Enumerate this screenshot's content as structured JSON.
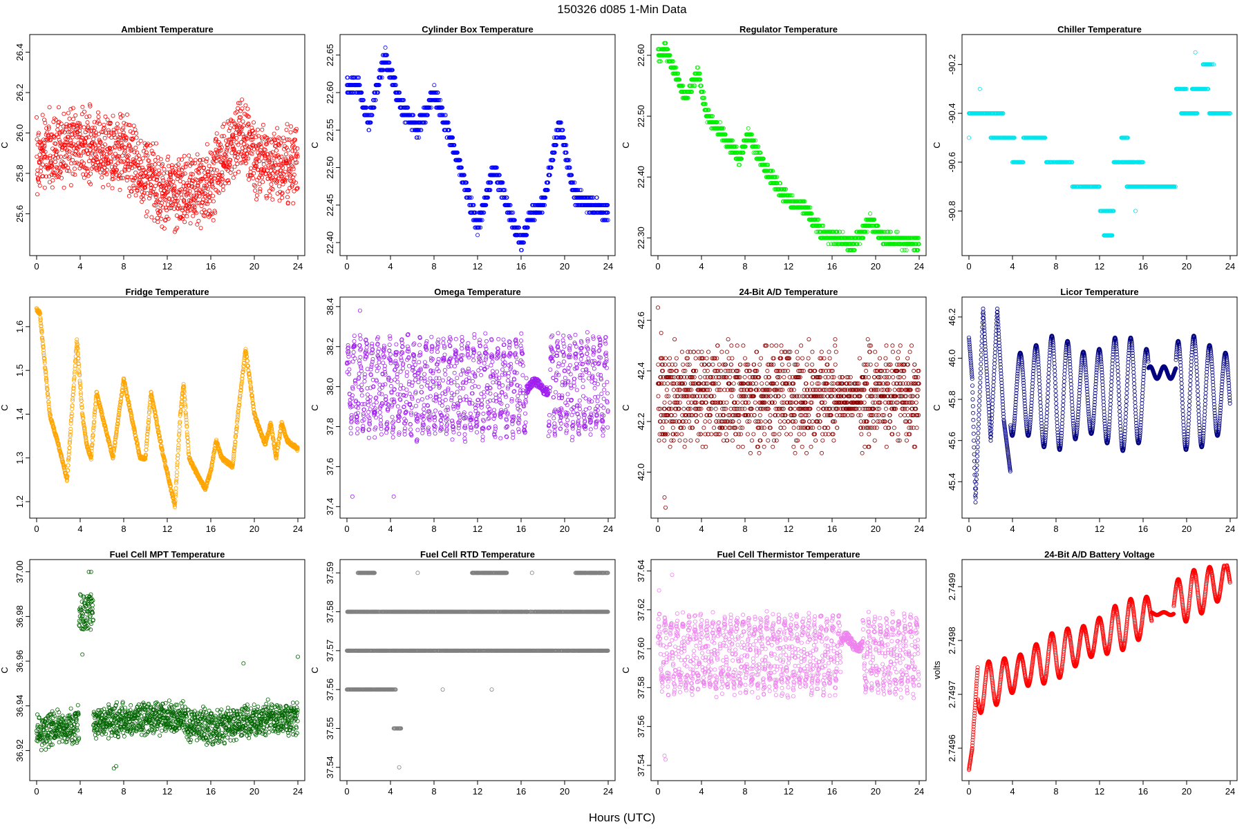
{
  "figure": {
    "title": "150326    d085    1-Min Data",
    "xlabel": "Hours (UTC)"
  },
  "chart_data": [
    {
      "type": "scatter",
      "title": "Ambient Temperature",
      "ylabel": "C",
      "xlabel": "Hours (UTC)",
      "color": "#ff0000",
      "xlim": [
        0,
        24
      ],
      "ylim": [
        25.42,
        26.46
      ],
      "xticks": [
        0,
        4,
        8,
        12,
        16,
        20,
        24
      ],
      "yticks": [
        25.6,
        25.8,
        26.0,
        26.2,
        26.4
      ],
      "ytick_labels": [
        "25.6",
        "25.8",
        "26.0",
        "26.2",
        "26.4"
      ],
      "kind": "noise",
      "base": 25.85,
      "amp": 0.12,
      "spread": 0.22,
      "seed": 11,
      "keypoints": [
        [
          0,
          25.9
        ],
        [
          4,
          25.95
        ],
        [
          8,
          25.9
        ],
        [
          12,
          25.7
        ],
        [
          14,
          25.72
        ],
        [
          16,
          25.75
        ],
        [
          18,
          25.95
        ],
        [
          19,
          26.0
        ],
        [
          20,
          25.85
        ],
        [
          24,
          25.85
        ]
      ]
    },
    {
      "type": "scatter",
      "title": "Cylinder Box Temperature",
      "ylabel": "C",
      "xlabel": "Hours (UTC)",
      "color": "#0000ff",
      "xlim": [
        0,
        24
      ],
      "ylim": [
        22.39,
        22.67
      ],
      "xticks": [
        0,
        4,
        8,
        12,
        16,
        20,
        24
      ],
      "yticks": [
        22.4,
        22.45,
        22.5,
        22.55,
        22.6,
        22.65
      ],
      "ytick_labels": [
        "22.40",
        "22.45",
        "22.50",
        "22.55",
        "22.60",
        "22.65"
      ],
      "kind": "stepped",
      "step": 0.01,
      "seed": 12,
      "keypoints": [
        [
          0,
          22.61
        ],
        [
          1,
          22.61
        ],
        [
          2,
          22.56
        ],
        [
          3.5,
          22.65
        ],
        [
          5,
          22.58
        ],
        [
          6.5,
          22.55
        ],
        [
          8,
          22.6
        ],
        [
          10,
          22.52
        ],
        [
          12,
          22.42
        ],
        [
          13.5,
          22.5
        ],
        [
          16,
          22.4
        ],
        [
          17,
          22.44
        ],
        [
          18,
          22.45
        ],
        [
          19.5,
          22.56
        ],
        [
          21,
          22.46
        ],
        [
          24,
          22.44
        ]
      ]
    },
    {
      "type": "scatter",
      "title": "Regulator Temperature",
      "ylabel": "C",
      "xlabel": "Hours (UTC)",
      "color": "#00ee00",
      "xlim": [
        0,
        24
      ],
      "ylim": [
        22.28,
        22.625
      ],
      "xticks": [
        0,
        4,
        8,
        12,
        16,
        20,
        24
      ],
      "yticks": [
        22.3,
        22.4,
        22.5,
        22.6
      ],
      "ytick_labels": [
        "22.30",
        "22.40",
        "22.50",
        "22.60"
      ],
      "kind": "stepped",
      "step": 0.01,
      "seed": 13,
      "keypoints": [
        [
          0,
          22.6
        ],
        [
          0.7,
          22.61
        ],
        [
          2.5,
          22.53
        ],
        [
          3.7,
          22.57
        ],
        [
          4.5,
          22.5
        ],
        [
          6,
          22.47
        ],
        [
          7.5,
          22.43
        ],
        [
          8.3,
          22.47
        ],
        [
          10,
          22.41
        ],
        [
          12,
          22.36
        ],
        [
          13.5,
          22.35
        ],
        [
          15,
          22.31
        ],
        [
          16,
          22.3
        ],
        [
          18,
          22.29
        ],
        [
          19.5,
          22.33
        ],
        [
          20.5,
          22.3
        ],
        [
          24,
          22.29
        ]
      ]
    },
    {
      "type": "scatter",
      "title": "Chiller Temperature",
      "ylabel": "C",
      "xlabel": "Hours (UTC)",
      "color": "#00e5ee",
      "xlim": [
        0,
        24
      ],
      "ylim": [
        -90.96,
        -90.1
      ],
      "xticks": [
        0,
        4,
        8,
        12,
        16,
        20,
        24
      ],
      "yticks": [
        -90.8,
        -90.6,
        -90.4,
        -90.2
      ],
      "ytick_labels": [
        "-90.8",
        "-90.6",
        "-90.4",
        "-90.2"
      ],
      "kind": "levels",
      "seed": 14,
      "segments": [
        [
          0,
          1.5,
          -90.4
        ],
        [
          1.5,
          3.2,
          -90.4
        ],
        [
          2,
          3.2,
          -90.5
        ],
        [
          3.2,
          4.2,
          -90.5
        ],
        [
          4,
          5,
          -90.6
        ],
        [
          5,
          7,
          -90.5
        ],
        [
          7,
          9.5,
          -90.6
        ],
        [
          9.5,
          12,
          -90.7
        ],
        [
          12,
          13.3,
          -90.8
        ],
        [
          12.4,
          13.2,
          -90.9
        ],
        [
          13.3,
          16,
          -90.6
        ],
        [
          14,
          14.6,
          -90.5
        ],
        [
          14.5,
          19,
          -90.7
        ],
        [
          19,
          20,
          -90.3
        ],
        [
          19.5,
          21,
          -90.4
        ],
        [
          20.5,
          22,
          -90.3
        ],
        [
          22,
          24,
          -90.4
        ],
        [
          21.5,
          22.5,
          -90.2
        ]
      ],
      "extras": [
        [
          0,
          -90.5
        ],
        [
          1,
          -90.3
        ],
        [
          20.8,
          -90.15
        ],
        [
          15.3,
          -90.8
        ],
        [
          3,
          -90.4
        ]
      ]
    },
    {
      "type": "scatter",
      "title": "Fridge Temperature",
      "ylabel": "C",
      "xlabel": "Hours (UTC)",
      "color": "#ffa500",
      "xlim": [
        0,
        24
      ],
      "ylim": [
        1.175,
        1.655
      ],
      "xticks": [
        0,
        4,
        8,
        12,
        16,
        20,
        24
      ],
      "yticks": [
        1.2,
        1.3,
        1.4,
        1.5,
        1.6
      ],
      "ytick_labels": [
        "1.2",
        "1.3",
        "1.4",
        "1.5",
        "1.6"
      ],
      "kind": "curve",
      "jitter": 0.004,
      "seed": 15,
      "keypoints": [
        [
          0,
          1.64
        ],
        [
          0.3,
          1.63
        ],
        [
          1.2,
          1.4
        ],
        [
          2,
          1.33
        ],
        [
          2.5,
          1.28
        ],
        [
          2.8,
          1.25
        ],
        [
          3.7,
          1.57
        ],
        [
          4.2,
          1.4
        ],
        [
          4.6,
          1.33
        ],
        [
          5,
          1.3
        ],
        [
          5.5,
          1.45
        ],
        [
          6,
          1.4
        ],
        [
          6.5,
          1.35
        ],
        [
          7,
          1.3
        ],
        [
          8,
          1.48
        ],
        [
          8.5,
          1.42
        ],
        [
          9.5,
          1.3
        ],
        [
          10,
          1.3
        ],
        [
          10.5,
          1.45
        ],
        [
          11.5,
          1.32
        ],
        [
          12.7,
          1.19
        ],
        [
          13.2,
          1.4
        ],
        [
          13.5,
          1.47
        ],
        [
          14,
          1.3
        ],
        [
          15,
          1.25
        ],
        [
          15.5,
          1.23
        ],
        [
          16,
          1.27
        ],
        [
          16.5,
          1.34
        ],
        [
          17,
          1.3
        ],
        [
          18,
          1.28
        ],
        [
          18.5,
          1.4
        ],
        [
          19.2,
          1.55
        ],
        [
          20,
          1.4
        ],
        [
          21,
          1.33
        ],
        [
          21.5,
          1.38
        ],
        [
          22,
          1.3
        ],
        [
          22.5,
          1.38
        ],
        [
          23,
          1.34
        ],
        [
          24,
          1.32
        ]
      ]
    },
    {
      "type": "scatter",
      "title": "Omega Temperature",
      "ylabel": "C",
      "xlabel": "Hours (UTC)",
      "color": "#a020f0",
      "xlim": [
        0,
        24
      ],
      "ylim": [
        37.37,
        38.42
      ],
      "xticks": [
        0,
        4,
        8,
        12,
        16,
        20,
        24
      ],
      "yticks": [
        37.4,
        37.6,
        37.8,
        38.0,
        38.2,
        38.4
      ],
      "ytick_labels": [
        "37.4",
        "37.6",
        "37.8",
        "38.0",
        "38.2",
        "38.4"
      ],
      "kind": "oscill",
      "center": 38.0,
      "amp": 0.27,
      "period": 0.55,
      "seed": 16,
      "quiet": [
        [
          16.5,
          18.5,
          38.0,
          0.04
        ]
      ],
      "extras": [
        [
          4.3,
          37.45
        ],
        [
          0.5,
          37.45
        ],
        [
          1.2,
          38.38
        ]
      ]
    },
    {
      "type": "scatter",
      "title": "24-Bit A/D Temperature",
      "ylabel": "C",
      "xlabel": "Hours (UTC)",
      "color": "#8b0000",
      "xlim": [
        0,
        24
      ],
      "ylim": [
        41.84,
        42.67
      ],
      "xticks": [
        0,
        4,
        8,
        12,
        16,
        20,
        24
      ],
      "yticks": [
        42.0,
        42.2,
        42.4,
        42.6
      ],
      "ytick_labels": [
        "42.0",
        "42.2",
        "42.4",
        "42.6"
      ],
      "kind": "stepnoise",
      "center": 42.3,
      "spread": 0.24,
      "step": 0.025,
      "seed": 17,
      "quiet": [
        [
          16.5,
          18.5,
          42.3,
          0.07
        ]
      ],
      "extras": [
        [
          0,
          42.65
        ],
        [
          0.6,
          41.9
        ],
        [
          0.7,
          41.86
        ],
        [
          0.3,
          42.55
        ]
      ]
    },
    {
      "type": "scatter",
      "title": "Licor Temperature",
      "ylabel": "C",
      "xlabel": "Hours (UTC)",
      "color": "#000080",
      "xlim": [
        0,
        24
      ],
      "ylim": [
        45.25,
        46.27
      ],
      "xticks": [
        0,
        4,
        8,
        12,
        16,
        20,
        24
      ],
      "yticks": [
        45.4,
        45.6,
        45.8,
        46.0,
        46.2
      ],
      "ytick_labels": [
        "45.4",
        "45.6",
        "45.8",
        "46.0",
        "46.2"
      ],
      "kind": "sine",
      "center": 45.83,
      "amp": 0.28,
      "period": 1.45,
      "seed": 18,
      "quiet": [
        [
          16.5,
          19,
          45.93,
          0.03
        ]
      ],
      "keypoints": [
        [
          0,
          46.1
        ],
        [
          0.3,
          45.9
        ],
        [
          0.6,
          45.3
        ],
        [
          1.3,
          46.24
        ],
        [
          2,
          45.6
        ],
        [
          2.6,
          46.24
        ],
        [
          3.2,
          45.7
        ],
        [
          3.8,
          45.45
        ]
      ]
    },
    {
      "type": "scatter",
      "title": "Fuel Cell MPT Temperature",
      "ylabel": "C",
      "xlabel": "Hours (UTC)",
      "color": "#006400",
      "xlim": [
        0,
        24
      ],
      "ylim": [
        36.909,
        37.003
      ],
      "xticks": [
        0,
        4,
        8,
        12,
        16,
        20,
        24
      ],
      "yticks": [
        36.92,
        36.94,
        36.96,
        36.98,
        37.0
      ],
      "ytick_labels": [
        "36.92",
        "36.94",
        "36.96",
        "36.98",
        "37.00"
      ],
      "kind": "noise",
      "base": 36.932,
      "amp": 0.004,
      "spread": 0.009,
      "seed": 19,
      "bump": [
        3.9,
        5.2,
        36.982,
        0.008
      ],
      "keypoints": [
        [
          0,
          36.928
        ],
        [
          4,
          36.932
        ],
        [
          8,
          36.934
        ],
        [
          12,
          36.935
        ],
        [
          16,
          36.93
        ],
        [
          20,
          36.934
        ],
        [
          24,
          36.934
        ]
      ],
      "extras": [
        [
          4.8,
          37.0
        ],
        [
          5.0,
          37.0
        ],
        [
          4.2,
          36.963
        ],
        [
          7.1,
          36.912
        ],
        [
          7.3,
          36.913
        ],
        [
          24,
          36.962
        ],
        [
          19,
          36.959
        ]
      ]
    },
    {
      "type": "scatter",
      "title": "Fuel Cell RTD Temperature",
      "ylabel": "C",
      "xlabel": "Hours (UTC)",
      "color": "#808080",
      "xlim": [
        0,
        24
      ],
      "ylim": [
        37.538,
        37.592
      ],
      "xticks": [
        0,
        4,
        8,
        12,
        16,
        20,
        24
      ],
      "yticks": [
        37.54,
        37.55,
        37.56,
        37.57,
        37.58,
        37.59
      ],
      "ytick_labels": [
        "37.54",
        "37.55",
        "37.56",
        "37.57",
        "37.58",
        "37.59"
      ],
      "kind": "levels",
      "seed": 20,
      "segments": [
        [
          0,
          24,
          37.58
        ],
        [
          0,
          24,
          37.57
        ],
        [
          1,
          2.6,
          37.59
        ],
        [
          11.5,
          14.7,
          37.59
        ],
        [
          21,
          24,
          37.59
        ],
        [
          0,
          4.5,
          37.56
        ],
        [
          4.3,
          5,
          37.55
        ]
      ],
      "extras": [
        [
          4.8,
          37.54
        ],
        [
          6.5,
          37.59
        ],
        [
          17,
          37.59
        ],
        [
          13.3,
          37.56
        ],
        [
          8.8,
          37.56
        ]
      ]
    },
    {
      "type": "scatter",
      "title": "Fuel Cell Thermistor Temperature",
      "ylabel": "C",
      "xlabel": "Hours (UTC)",
      "color": "#ee82ee",
      "xlim": [
        0,
        24
      ],
      "ylim": [
        37.535,
        37.643
      ],
      "xticks": [
        0,
        4,
        8,
        12,
        16,
        20,
        24
      ],
      "yticks": [
        37.54,
        37.56,
        37.58,
        37.6,
        37.62,
        37.64
      ],
      "ytick_labels": [
        "37.54",
        "37.56",
        "37.58",
        "37.60",
        "37.62",
        "37.64"
      ],
      "kind": "oscill",
      "center": 37.597,
      "amp": 0.022,
      "period": 0.55,
      "seed": 21,
      "quiet": [
        [
          16.8,
          18.8,
          37.603,
          0.005
        ]
      ],
      "extras": [
        [
          0.6,
          37.545
        ],
        [
          0.7,
          37.543
        ],
        [
          1.3,
          37.638
        ],
        [
          0.1,
          37.63
        ]
      ]
    },
    {
      "type": "scatter",
      "title": "24-Bit A/D Battery Voltage",
      "ylabel": "volts",
      "xlabel": "Hours (UTC)",
      "color": "#ff0000",
      "xlim": [
        0,
        24
      ],
      "ylim": [
        2.74955,
        2.74994
      ],
      "xticks": [
        0,
        4,
        8,
        12,
        16,
        20,
        24
      ],
      "yticks": [
        2.7496,
        2.7497,
        2.7498,
        2.7499
      ],
      "ytick_labels": [
        "2.7496",
        "2.7497",
        "2.7498",
        "2.7499"
      ],
      "kind": "sine",
      "center": 2.7497,
      "trend": 9e-06,
      "amp": 4.5e-05,
      "period": 1.45,
      "seed": 22,
      "quiet": [
        [
          16.8,
          18.8,
          2.74985,
          2.5e-06
        ]
      ],
      "keypoints": [
        [
          0,
          2.74956
        ],
        [
          0.3,
          2.7496
        ],
        [
          0.8,
          2.74975
        ]
      ]
    }
  ]
}
